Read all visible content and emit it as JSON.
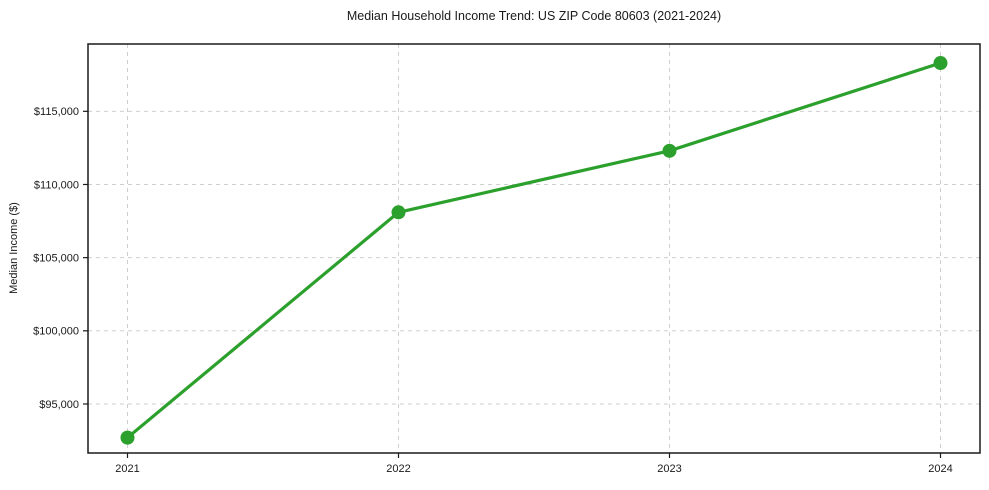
{
  "chart_data": {
    "type": "line",
    "title": "Median Household Income Trend: US ZIP Code 80603 (2021-2024)",
    "xlabel": "",
    "ylabel": "Median Income ($)",
    "categories": [
      "2021",
      "2022",
      "2023",
      "2024"
    ],
    "series": [
      {
        "name": "Median Household Income",
        "values": [
          92700,
          108100,
          112300,
          118300
        ]
      }
    ],
    "ylim": [
      91650,
      119600
    ],
    "yticks": {
      "values": [
        95000,
        100000,
        105000,
        110000,
        115000
      ],
      "labels": [
        "$95,000",
        "$100,000",
        "$105,000",
        "$110,000",
        "$115,000"
      ]
    },
    "grid": "both",
    "grid_style": "dashed",
    "legend_position": "none",
    "colors": {
      "line": "#2ca02c",
      "marker": "#2ca02c",
      "grid": "#cfcfcf",
      "spine": "#1a1a1a",
      "text": "#1a1a1a"
    }
  }
}
